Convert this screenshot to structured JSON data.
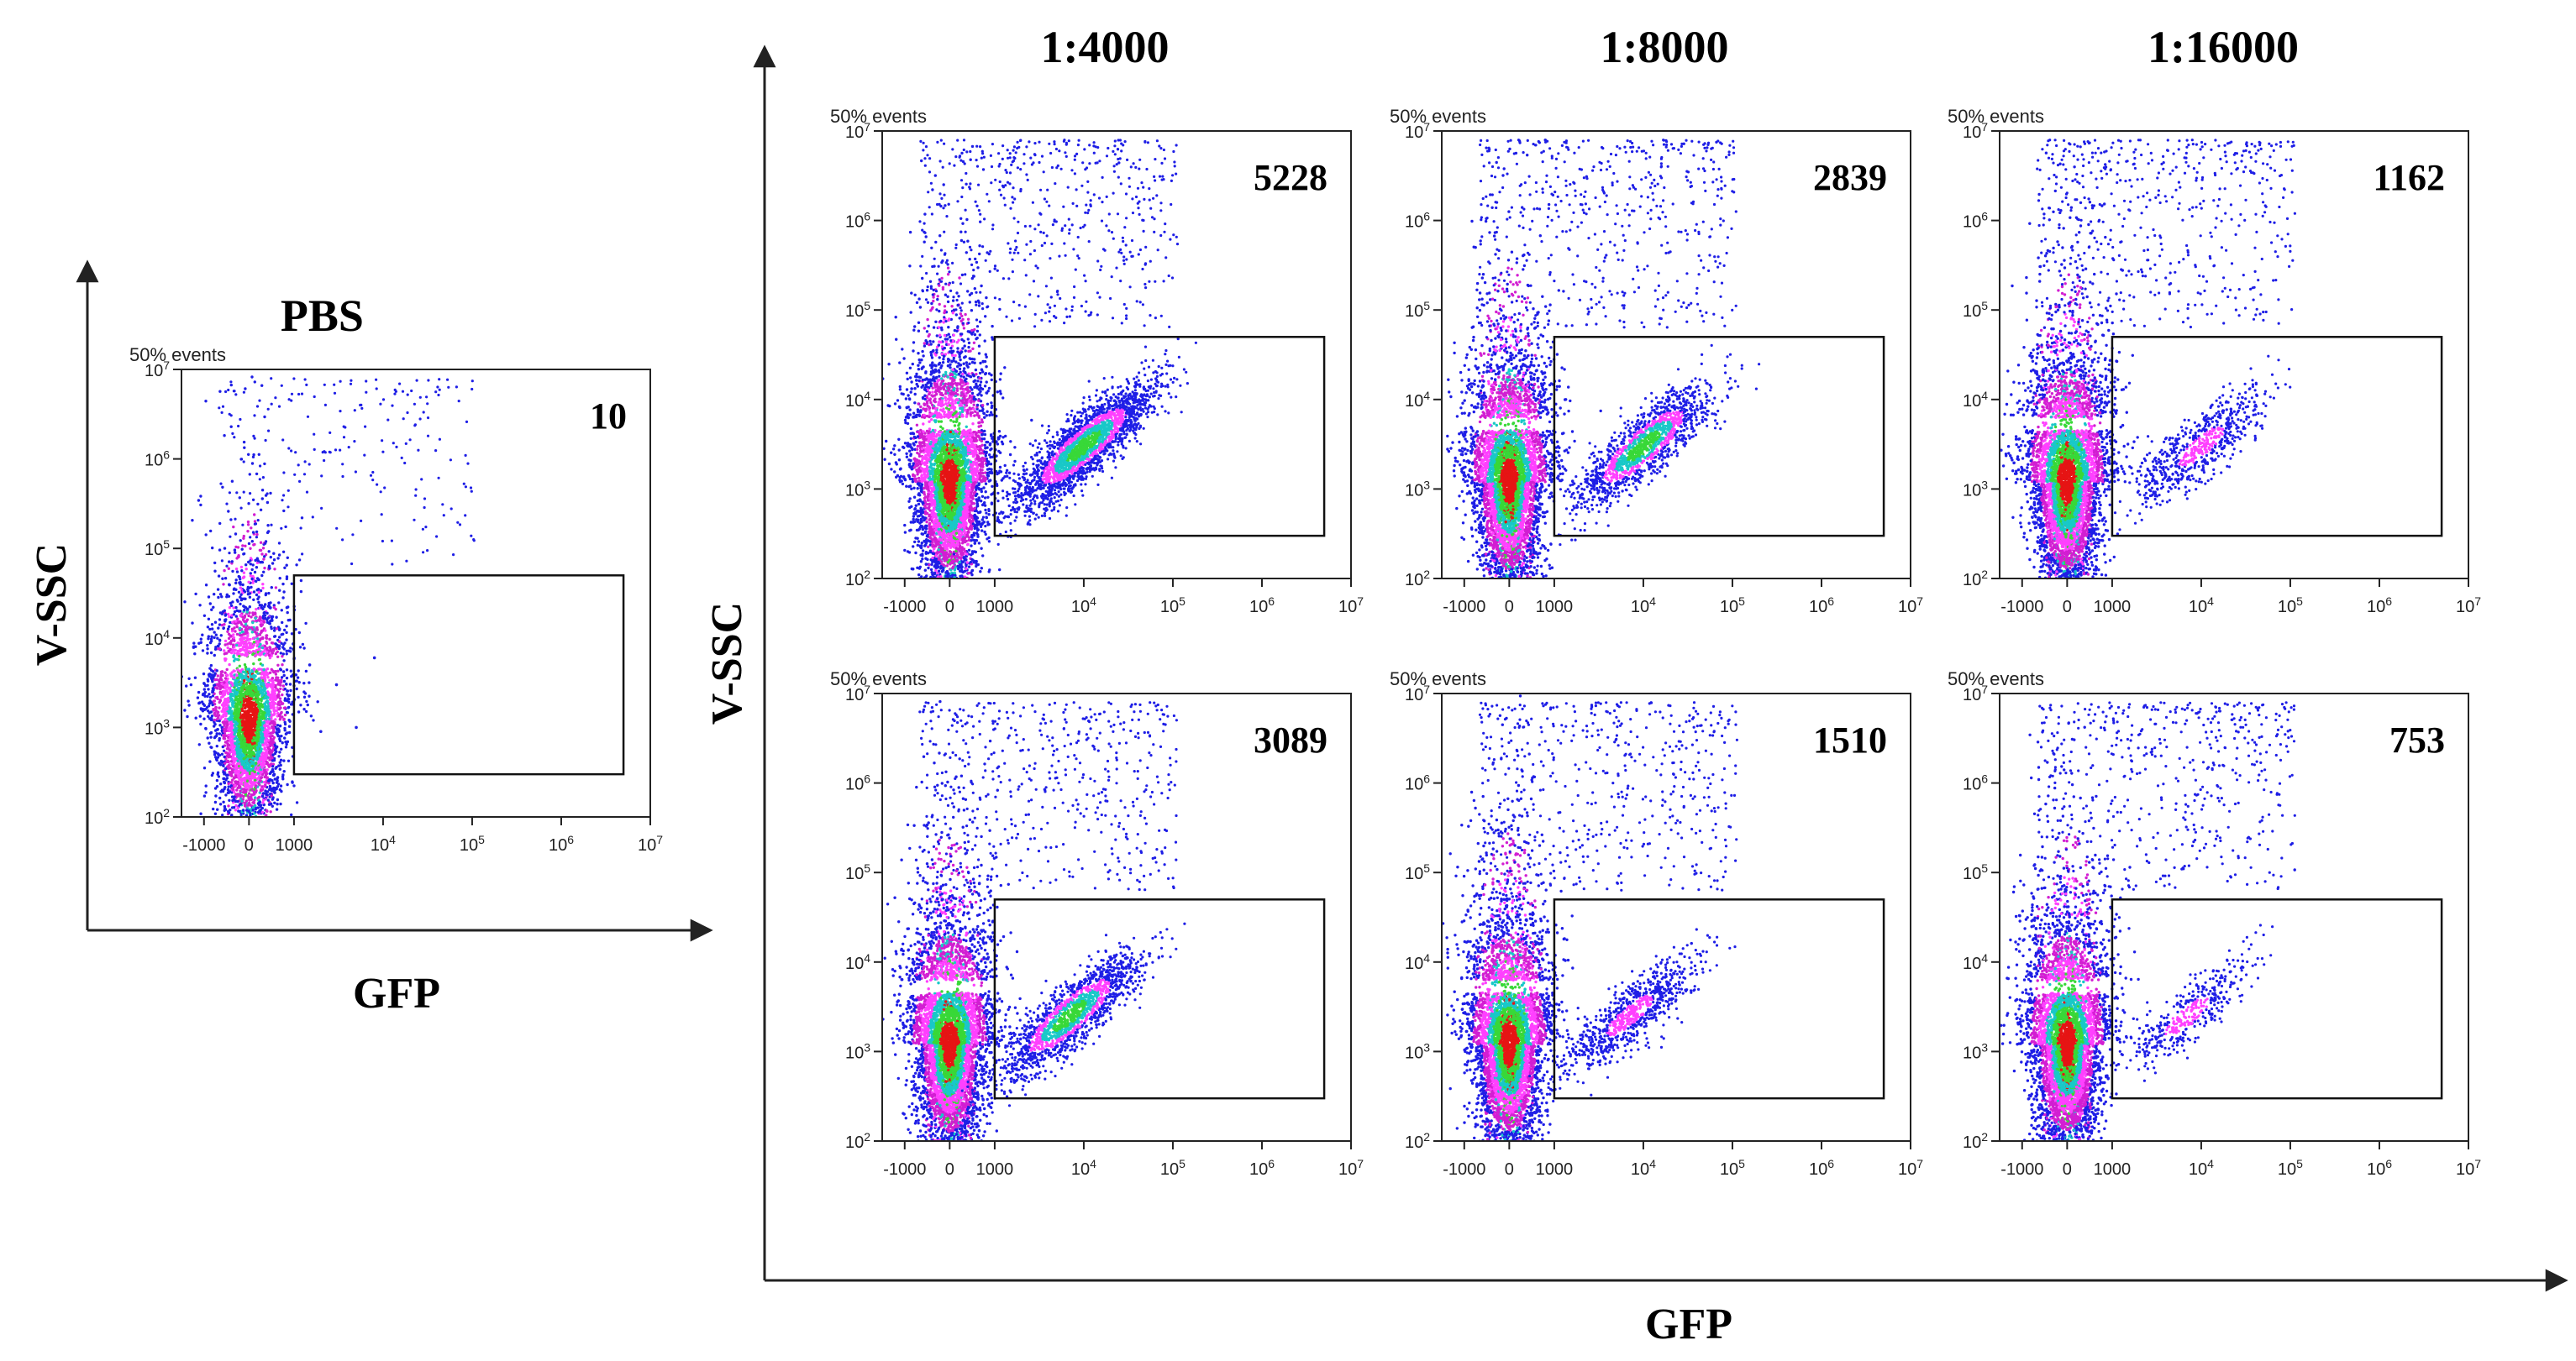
{
  "colors": {
    "axis": "#222222",
    "density_low": "#1e1ee6",
    "density_mid1": "#d21ed2",
    "density_mid2": "#ff40ff",
    "density_mid3": "#19c8c8",
    "density_mid4": "#38d838",
    "density_high": "#e61414"
  },
  "figure": {
    "left_group": {
      "ylabel": "V-SSC",
      "xlabel": "GFP"
    },
    "right_group": {
      "ylabel": "V-SSC",
      "xlabel": "GFP"
    },
    "column_titles": [
      "1:4000",
      "1:8000",
      "1:16000"
    ]
  },
  "chart_data": [
    {
      "type": "scatter",
      "panel": "pbs",
      "title": "PBS",
      "events_label": "50% events",
      "gate_count": "10",
      "xscale": "logicle",
      "yscale": "log",
      "xticks": [
        "-1000",
        "0",
        "1000",
        "10^4",
        "10^5",
        "10^6",
        "10^7"
      ],
      "yticks": [
        "10^2",
        "10^3",
        "10^4",
        "10^5",
        "10^6",
        "10^7"
      ],
      "xlim": [
        -1500,
        10000000
      ],
      "ylim": [
        100,
        10000000
      ],
      "gate": {
        "x": [
          1000,
          5000000
        ],
        "y": [
          300,
          50000
        ]
      },
      "populations": [
        {
          "name": "GFP-negative",
          "center_gfp": 0,
          "center_ssc": 1200,
          "spread": "wide",
          "relative_density": 1.0
        },
        {
          "name": "GFP-positive",
          "center_gfp": null,
          "center_ssc": null,
          "spread": "none",
          "relative_density": 0.0
        }
      ]
    },
    {
      "type": "scatter",
      "panel": "1:4000 top",
      "events_label": "50% events",
      "gate_count": "5228",
      "xscale": "logicle",
      "yscale": "log",
      "xticks": [
        "-1000",
        "0",
        "1000",
        "10^4",
        "10^5",
        "10^6",
        "10^7"
      ],
      "yticks": [
        "10^2",
        "10^3",
        "10^4",
        "10^5",
        "10^6",
        "10^7"
      ],
      "xlim": [
        -1500,
        10000000
      ],
      "ylim": [
        100,
        10000000
      ],
      "gate": {
        "x": [
          1000,
          5000000
        ],
        "y": [
          300,
          50000
        ]
      },
      "populations": [
        {
          "name": "GFP-negative",
          "center_gfp": 0,
          "center_ssc": 1200,
          "spread": "wide",
          "relative_density": 1.0
        },
        {
          "name": "GFP-positive",
          "center_gfp": 10000,
          "center_ssc": 3000,
          "spread": "diagonal",
          "relative_density": 0.6
        }
      ]
    },
    {
      "type": "scatter",
      "panel": "1:8000 top",
      "events_label": "50% events",
      "gate_count": "2839",
      "xscale": "logicle",
      "yscale": "log",
      "xticks": [
        "-1000",
        "0",
        "1000",
        "10^4",
        "10^5",
        "10^6",
        "10^7"
      ],
      "yticks": [
        "10^2",
        "10^3",
        "10^4",
        "10^5",
        "10^6",
        "10^7"
      ],
      "xlim": [
        -1500,
        10000000
      ],
      "ylim": [
        100,
        10000000
      ],
      "gate": {
        "x": [
          1000,
          5000000
        ],
        "y": [
          300,
          50000
        ]
      },
      "populations": [
        {
          "name": "GFP-negative",
          "center_gfp": 0,
          "center_ssc": 1200,
          "spread": "wide",
          "relative_density": 1.0
        },
        {
          "name": "GFP-positive",
          "center_gfp": 10000,
          "center_ssc": 3000,
          "spread": "diagonal",
          "relative_density": 0.35
        }
      ]
    },
    {
      "type": "scatter",
      "panel": "1:16000 top",
      "events_label": "50% events",
      "gate_count": "1162",
      "xscale": "logicle",
      "yscale": "log",
      "xticks": [
        "-1000",
        "0",
        "1000",
        "10^4",
        "10^5",
        "10^6",
        "10^7"
      ],
      "yticks": [
        "10^2",
        "10^3",
        "10^4",
        "10^5",
        "10^6",
        "10^7"
      ],
      "xlim": [
        -1500,
        10000000
      ],
      "ylim": [
        100,
        10000000
      ],
      "gate": {
        "x": [
          1000,
          5000000
        ],
        "y": [
          300,
          50000
        ]
      },
      "populations": [
        {
          "name": "GFP-negative",
          "center_gfp": 0,
          "center_ssc": 1200,
          "spread": "wide",
          "relative_density": 1.0
        },
        {
          "name": "GFP-positive",
          "center_gfp": 10000,
          "center_ssc": 3000,
          "spread": "diagonal",
          "relative_density": 0.16
        }
      ]
    },
    {
      "type": "scatter",
      "panel": "1:4000 bottom",
      "events_label": "50% events",
      "gate_count": "3089",
      "xscale": "logicle",
      "yscale": "log",
      "xticks": [
        "-1000",
        "0",
        "1000",
        "10^4",
        "10^5",
        "10^6",
        "10^7"
      ],
      "yticks": [
        "10^2",
        "10^3",
        "10^4",
        "10^5",
        "10^6",
        "10^7"
      ],
      "xlim": [
        -1500,
        10000000
      ],
      "ylim": [
        100,
        10000000
      ],
      "gate": {
        "x": [
          1000,
          5000000
        ],
        "y": [
          300,
          50000
        ]
      },
      "populations": [
        {
          "name": "GFP-negative",
          "center_gfp": 0,
          "center_ssc": 1200,
          "spread": "wide",
          "relative_density": 1.0
        },
        {
          "name": "GFP-positive",
          "center_gfp": 7000,
          "center_ssc": 2500,
          "spread": "diagonal",
          "relative_density": 0.4
        }
      ]
    },
    {
      "type": "scatter",
      "panel": "1:8000 bottom",
      "events_label": "50% events",
      "gate_count": "1510",
      "xscale": "logicle",
      "yscale": "log",
      "xticks": [
        "-1000",
        "0",
        "1000",
        "10^4",
        "10^5",
        "10^6",
        "10^7"
      ],
      "yticks": [
        "10^2",
        "10^3",
        "10^4",
        "10^5",
        "10^6",
        "10^7"
      ],
      "xlim": [
        -1500,
        10000000
      ],
      "ylim": [
        100,
        10000000
      ],
      "gate": {
        "x": [
          1000,
          5000000
        ],
        "y": [
          300,
          50000
        ]
      },
      "populations": [
        {
          "name": "GFP-negative",
          "center_gfp": 0,
          "center_ssc": 1200,
          "spread": "wide",
          "relative_density": 1.0
        },
        {
          "name": "GFP-positive",
          "center_gfp": 7000,
          "center_ssc": 2500,
          "spread": "diagonal",
          "relative_density": 0.2
        }
      ]
    },
    {
      "type": "scatter",
      "panel": "1:16000 bottom",
      "events_label": "50% events",
      "gate_count": "753",
      "xscale": "logicle",
      "yscale": "log",
      "xticks": [
        "-1000",
        "0",
        "1000",
        "10^4",
        "10^5",
        "10^6",
        "10^7"
      ],
      "yticks": [
        "10^2",
        "10^3",
        "10^4",
        "10^5",
        "10^6",
        "10^7"
      ],
      "xlim": [
        -1500,
        10000000
      ],
      "ylim": [
        100,
        10000000
      ],
      "gate": {
        "x": [
          1000,
          5000000
        ],
        "y": [
          300,
          50000
        ]
      },
      "populations": [
        {
          "name": "GFP-negative",
          "center_gfp": 0,
          "center_ssc": 1200,
          "spread": "wide",
          "relative_density": 1.0
        },
        {
          "name": "GFP-positive",
          "center_gfp": 7000,
          "center_ssc": 2500,
          "spread": "diagonal",
          "relative_density": 0.1
        }
      ]
    }
  ]
}
